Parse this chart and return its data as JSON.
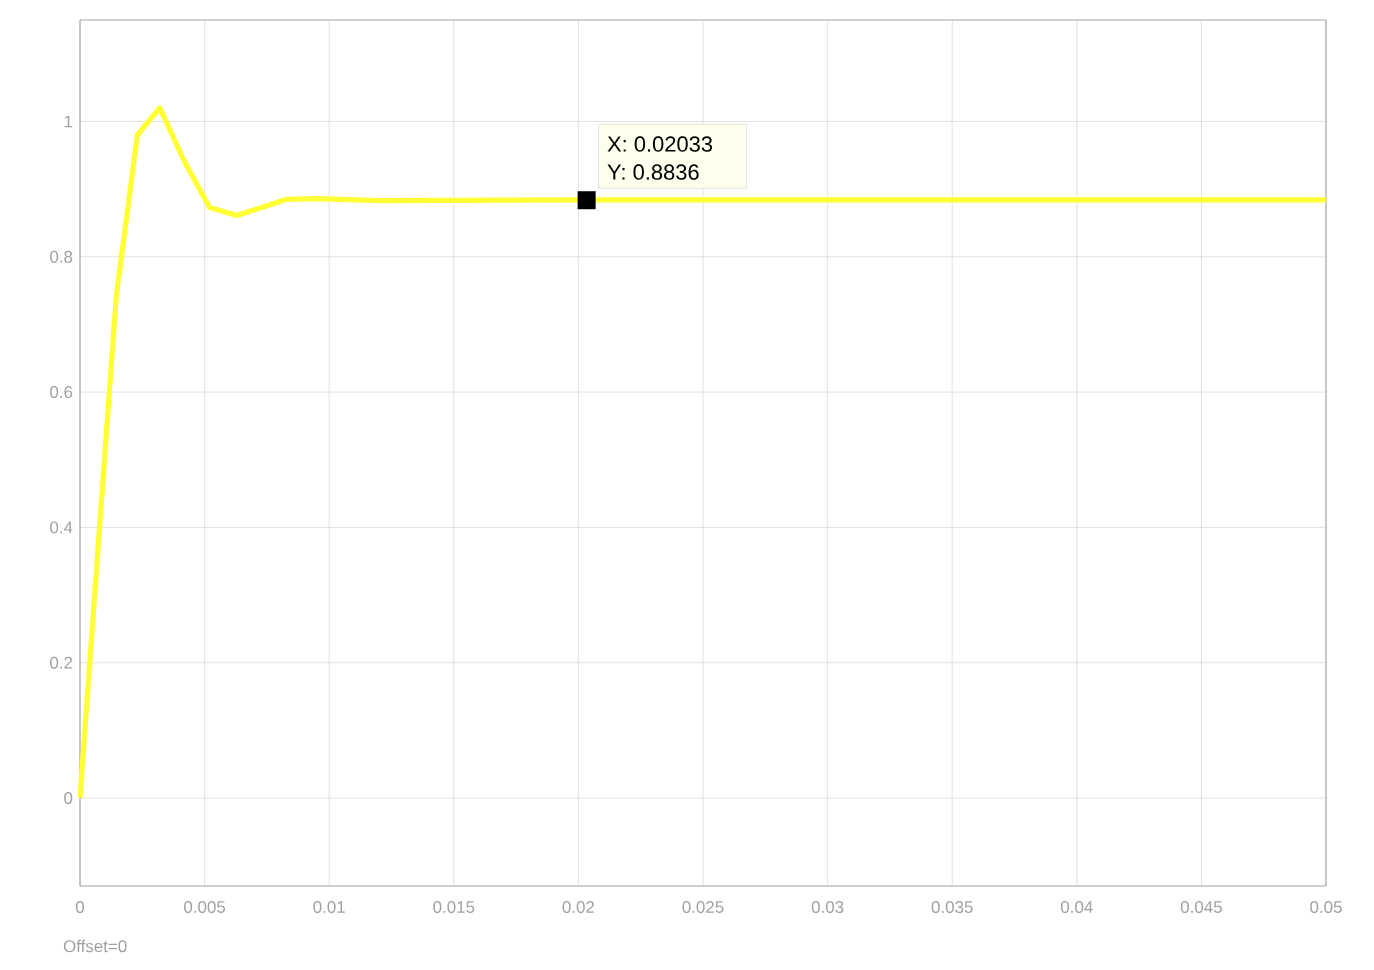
{
  "chart_data": {
    "type": "line",
    "x": [
      0,
      0.00145,
      0.0023,
      0.0032,
      0.0042,
      0.0052,
      0.0063,
      0.0083,
      0.0095,
      0.012,
      0.02033,
      0.03,
      0.04,
      0.05
    ],
    "series": [
      {
        "color": "#ffff33",
        "values": [
          0,
          0.74,
          0.98,
          1.02,
          0.94,
          0.873,
          0.861,
          0.885,
          0.886,
          0.883,
          0.884,
          0.884,
          0.884,
          0.884
        ]
      }
    ],
    "xlim": [
      0,
      0.05
    ],
    "ylim": [
      -0.13,
      1.15
    ],
    "xticks": [
      0,
      0.005,
      0.01,
      0.015,
      0.02,
      0.025,
      0.03,
      0.035,
      0.04,
      0.045,
      0.05
    ],
    "yticks": [
      0,
      0.2,
      0.4,
      0.6,
      0.8,
      1
    ],
    "grid": true,
    "marker": "none",
    "line_style": "solid",
    "annotations": [
      {
        "text": "X: 0.02033",
        "x": 0.02033,
        "y": 0.8836
      },
      {
        "text": "Y: 0.8836",
        "x": 0.02033,
        "y": 0.8836
      },
      "Offset=0"
    ]
  }
}
